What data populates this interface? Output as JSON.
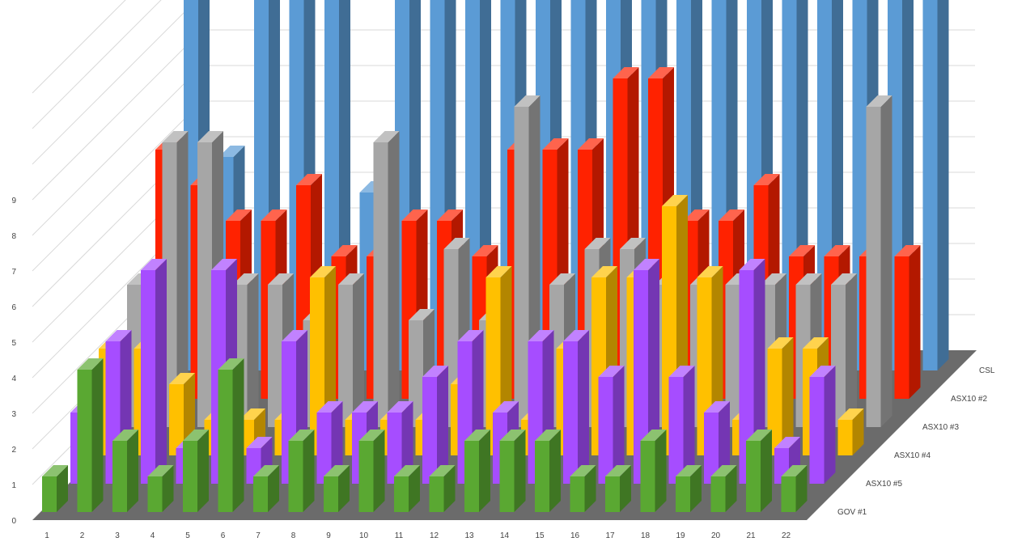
{
  "chart_data": {
    "type": "bar",
    "subtype": "3d-column",
    "title": "",
    "xlabel": "",
    "ylabel": "",
    "categories": [
      "1",
      "2",
      "3",
      "4",
      "5",
      "6",
      "7",
      "8",
      "9",
      "10",
      "11",
      "12",
      "13",
      "14",
      "15",
      "16",
      "17",
      "18",
      "19",
      "20",
      "21",
      "22"
    ],
    "y_ticks": [
      "0",
      "1",
      "2",
      "3",
      "4",
      "5",
      "6",
      "7",
      "8",
      "9"
    ],
    "ylim": [
      0,
      9
    ],
    "grid": true,
    "legend": "depth-axis labels on the right",
    "series": [
      {
        "name": "GOV #1",
        "color": "#5aa832",
        "values": [
          1,
          4,
          2,
          1,
          2,
          4,
          1,
          2,
          1,
          2,
          1,
          1,
          2,
          2,
          2,
          1,
          1,
          2,
          1,
          1,
          2,
          1
        ]
      },
      {
        "name": "ASX10 #5",
        "color": "#a64dff",
        "values": [
          2,
          4,
          6,
          1,
          6,
          1,
          4,
          2,
          2,
          2,
          3,
          4,
          2,
          4,
          4,
          3,
          6,
          3,
          2,
          6,
          1,
          3
        ]
      },
      {
        "name": "ASX10 #4",
        "color": "#ffc000",
        "values": [
          3,
          3,
          2,
          1,
          1,
          1,
          5,
          1,
          1,
          1,
          2,
          5,
          1,
          3,
          5,
          5,
          7,
          5,
          1,
          3,
          3,
          1
        ]
      },
      {
        "name": "ASX10 #3",
        "color": "#a6a6a6",
        "values": [
          4,
          8,
          8,
          4,
          4,
          3,
          4,
          8,
          3,
          5,
          3,
          9,
          4,
          5,
          5,
          4,
          4,
          4,
          4,
          4,
          4,
          9
        ]
      },
      {
        "name": "ASX10 #2",
        "color": "#ff2200",
        "values": [
          7,
          6,
          5,
          5,
          6,
          4,
          4,
          5,
          5,
          4,
          7,
          7,
          7,
          9,
          9,
          5,
          5,
          6,
          4,
          4,
          4,
          4
        ]
      },
      {
        "name": "CSL",
        "color": "#5b9bd5",
        "values": [
          12,
          6,
          12,
          12,
          12,
          5,
          12,
          12,
          12,
          12,
          12,
          12,
          12,
          12,
          12,
          12,
          12,
          12,
          12,
          12,
          12,
          12
        ]
      }
    ]
  }
}
